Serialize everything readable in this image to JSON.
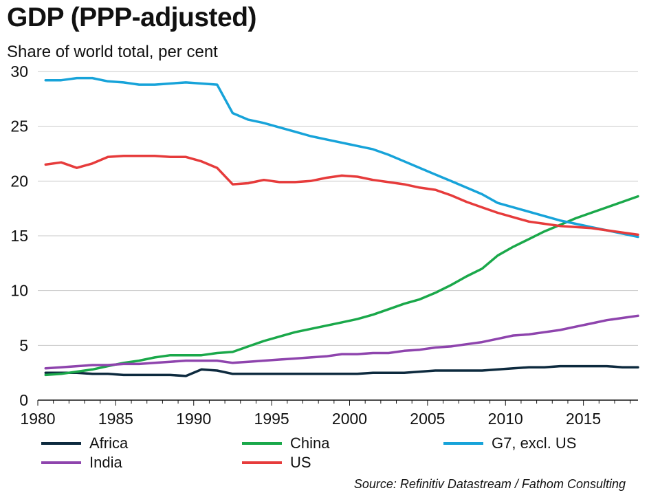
{
  "title": "GDP (PPP-adjusted)",
  "subtitle": "Share of world total, per cent",
  "source": "Source: Refinitiv Datastream / Fathom Consulting",
  "chart_data": {
    "type": "line",
    "title": "GDP (PPP-adjusted)",
    "ylabel": "Share of world total, per cent",
    "xlim": [
      1980,
      2018.5
    ],
    "ylim": [
      0,
      30
    ],
    "x_ticks": [
      "1980",
      "1985",
      "1990",
      "1995",
      "2000",
      "2005",
      "2010",
      "2015"
    ],
    "y_ticks": [
      "0",
      "5",
      "10",
      "15",
      "20",
      "25",
      "30"
    ],
    "grid": "horizontal",
    "legend_position": "bottom",
    "x": [
      1980.5,
      1981.5,
      1982.5,
      1983.5,
      1984.5,
      1985.5,
      1986.5,
      1987.5,
      1988.5,
      1989.5,
      1990.5,
      1991.5,
      1992.5,
      1993.5,
      1994.5,
      1995.5,
      1996.5,
      1997.5,
      1998.5,
      1999.5,
      2000.5,
      2001.5,
      2002.5,
      2003.5,
      2004.5,
      2005.5,
      2006.5,
      2007.5,
      2008.5,
      2009.5,
      2010.5,
      2011.5,
      2012.5,
      2013.5,
      2014.5,
      2015.5,
      2016.5,
      2017.5,
      2018.5
    ],
    "series": [
      {
        "name": "Africa",
        "color": "#0d2a3e",
        "values": [
          2.5,
          2.5,
          2.5,
          2.4,
          2.4,
          2.3,
          2.3,
          2.3,
          2.3,
          2.2,
          2.8,
          2.7,
          2.4,
          2.4,
          2.4,
          2.4,
          2.4,
          2.4,
          2.4,
          2.4,
          2.4,
          2.5,
          2.5,
          2.5,
          2.6,
          2.7,
          2.7,
          2.7,
          2.7,
          2.8,
          2.9,
          3.0,
          3.0,
          3.1,
          3.1,
          3.1,
          3.1,
          3.0,
          3.0
        ]
      },
      {
        "name": "China",
        "color": "#1aa84a",
        "values": [
          2.3,
          2.4,
          2.6,
          2.8,
          3.1,
          3.4,
          3.6,
          3.9,
          4.1,
          4.1,
          4.1,
          4.3,
          4.4,
          4.9,
          5.4,
          5.8,
          6.2,
          6.5,
          6.8,
          7.1,
          7.4,
          7.8,
          8.3,
          8.8,
          9.2,
          9.8,
          10.5,
          11.3,
          12.0,
          13.2,
          14.0,
          14.7,
          15.4,
          16.0,
          16.6,
          17.1,
          17.6,
          18.1,
          18.6
        ]
      },
      {
        "name": "G7, excl. US",
        "color": "#17a3d9",
        "values": [
          29.2,
          29.2,
          29.4,
          29.4,
          29.1,
          29.0,
          28.8,
          28.8,
          28.9,
          29.0,
          28.9,
          28.8,
          26.2,
          25.6,
          25.3,
          24.9,
          24.5,
          24.1,
          23.8,
          23.5,
          23.2,
          22.9,
          22.4,
          21.8,
          21.2,
          20.6,
          20.0,
          19.4,
          18.8,
          18.0,
          17.6,
          17.2,
          16.8,
          16.4,
          16.1,
          15.8,
          15.5,
          15.2,
          14.9
        ]
      },
      {
        "name": "India",
        "color": "#8e44ad",
        "values": [
          2.9,
          3.0,
          3.1,
          3.2,
          3.2,
          3.3,
          3.3,
          3.4,
          3.5,
          3.6,
          3.6,
          3.6,
          3.4,
          3.5,
          3.6,
          3.7,
          3.8,
          3.9,
          4.0,
          4.2,
          4.2,
          4.3,
          4.3,
          4.5,
          4.6,
          4.8,
          4.9,
          5.1,
          5.3,
          5.6,
          5.9,
          6.0,
          6.2,
          6.4,
          6.7,
          7.0,
          7.3,
          7.5,
          7.7
        ]
      },
      {
        "name": "US",
        "color": "#e63b3b",
        "values": [
          21.5,
          21.7,
          21.2,
          21.6,
          22.2,
          22.3,
          22.3,
          22.3,
          22.2,
          22.2,
          21.8,
          21.2,
          19.7,
          19.8,
          20.1,
          19.9,
          19.9,
          20.0,
          20.3,
          20.5,
          20.4,
          20.1,
          19.9,
          19.7,
          19.4,
          19.2,
          18.7,
          18.1,
          17.6,
          17.1,
          16.7,
          16.3,
          16.1,
          15.9,
          15.8,
          15.7,
          15.5,
          15.3,
          15.1
        ]
      }
    ]
  },
  "legend": [
    {
      "label": "Africa",
      "color": "#0d2a3e"
    },
    {
      "label": "China",
      "color": "#1aa84a"
    },
    {
      "label": "G7, excl. US",
      "color": "#17a3d9"
    },
    {
      "label": "India",
      "color": "#8e44ad"
    },
    {
      "label": "US",
      "color": "#e63b3b"
    }
  ]
}
